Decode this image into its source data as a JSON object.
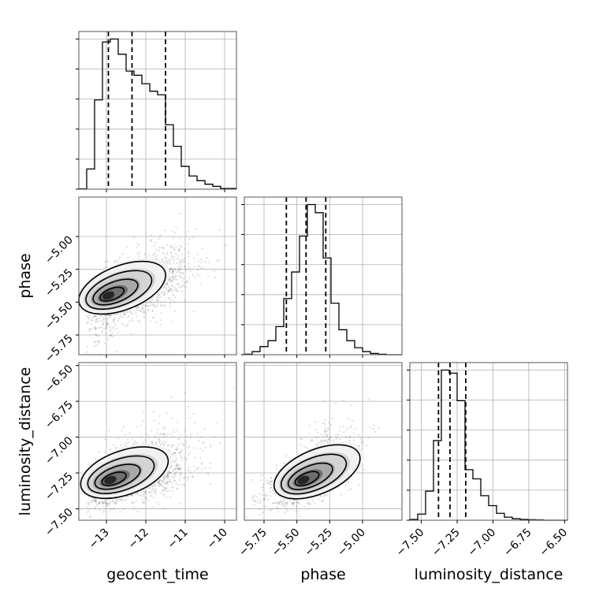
{
  "chart_data": {
    "type": "corner",
    "parameters": [
      "geocent_time",
      "phase",
      "luminosity_distance"
    ],
    "axis_labels": {
      "x": [
        "geocent_time",
        "phase",
        "luminosity_distance"
      ],
      "y": [
        "",
        "phase",
        "luminosity_distance"
      ]
    },
    "ranges": {
      "geocent_time": [
        -13.7,
        -9.7
      ],
      "phase": [
        -5.9,
        -4.7
      ],
      "luminosity_distance": [
        -7.58,
        -6.48
      ]
    },
    "ticks": {
      "geocent_time": {
        "values": [
          -13,
          -12,
          -11,
          -10
        ],
        "labels": [
          "−13",
          "−12",
          "−11",
          "−10"
        ]
      },
      "phase": {
        "values": [
          -5.75,
          -5.5,
          -5.25,
          -5.0
        ],
        "labels": [
          "−5.75",
          "−5.50",
          "−5.25",
          "−5.00"
        ]
      },
      "luminosity_distance": {
        "values": [
          -7.5,
          -7.25,
          -7.0,
          -6.75,
          -6.5
        ],
        "labels": [
          "−7.50",
          "−7.25",
          "−7.00",
          "−6.75",
          "−6.50"
        ]
      }
    },
    "quantiles": {
      "geocent_time": [
        -12.95,
        -12.35,
        -11.5
      ],
      "phase": [
        -5.58,
        -5.43,
        -5.28
      ],
      "luminosity_distance": [
        -7.38,
        -7.3,
        -7.19
      ]
    },
    "histograms": {
      "geocent_time": {
        "edges": [
          -13.7,
          -13.5,
          -13.3,
          -13.1,
          -12.9,
          -12.7,
          -12.5,
          -12.3,
          -12.1,
          -11.9,
          -11.7,
          -11.5,
          -11.3,
          -11.1,
          -10.9,
          -10.7,
          -10.5,
          -10.3,
          -10.1,
          -9.9,
          -9.7
        ],
        "counts": [
          2,
          130,
          575,
          948,
          967,
          869,
          761,
          734,
          679,
          631,
          608,
          415,
          276,
          147,
          85,
          55,
          32,
          18,
          4,
          4
        ]
      },
      "phase": {
        "edges": [
          -5.9,
          -5.84,
          -5.78,
          -5.72,
          -5.66,
          -5.6,
          -5.54,
          -5.48,
          -5.42,
          -5.36,
          -5.3,
          -5.24,
          -5.18,
          -5.12,
          -5.06,
          -5.0,
          -4.94,
          -4.88,
          -4.82,
          -4.76,
          -4.7
        ],
        "counts": [
          3,
          20,
          52,
          90,
          180,
          360,
          530,
          760,
          962,
          910,
          620,
          330,
          160,
          90,
          45,
          20,
          8,
          3,
          0,
          0
        ]
      },
      "luminosity_distance": {
        "edges": [
          -7.58,
          -7.525,
          -7.47,
          -7.415,
          -7.36,
          -7.305,
          -7.25,
          -7.195,
          -7.14,
          -7.085,
          -7.03,
          -6.975,
          -6.92,
          -6.865,
          -6.81,
          -6.755,
          -6.7,
          -6.645,
          -6.59,
          -6.535,
          -6.48
        ],
        "counts": [
          5,
          40,
          190,
          520,
          980,
          960,
          780,
          330,
          270,
          160,
          95,
          45,
          20,
          10,
          5,
          3,
          2,
          0,
          0,
          0
        ]
      }
    },
    "pairs": [
      {
        "x": "geocent_time",
        "y": "phase",
        "peak": [
          -12.95,
          -5.45
        ],
        "corr": 0.55
      },
      {
        "x": "geocent_time",
        "y": "luminosity_distance",
        "peak": [
          -12.9,
          -7.3
        ],
        "corr": 0.5
      },
      {
        "x": "phase",
        "y": "luminosity_distance",
        "peak": [
          -5.45,
          -7.3
        ],
        "corr": 0.6
      }
    ],
    "contour_levels": [
      0.118,
      0.393,
      0.675,
      0.865
    ],
    "grid": true,
    "colors": {
      "line": "#000000",
      "grid": "#b0b0b0",
      "points": "#000000"
    }
  }
}
